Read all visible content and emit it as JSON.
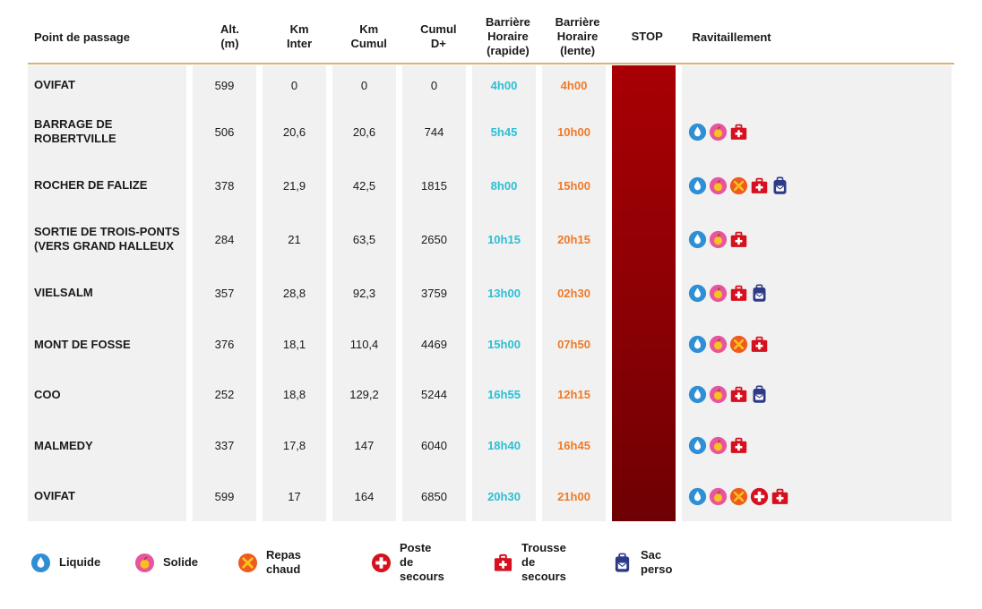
{
  "headers": {
    "name": "Point de passage",
    "alt": "Alt.\n(m)",
    "km_inter": "Km\nInter",
    "km_cumul": "Km\nCumul",
    "cumul_d": "Cumul\nD+",
    "bh_rapide": "Barrière\nHoraire\n(rapide)",
    "bh_lente": "Barrière\nHoraire\n(lente)",
    "stop": "STOP",
    "ravit": "Ravitaillement"
  },
  "rows": [
    {
      "name": "OVIFAT",
      "alt": "599",
      "km_inter": "0",
      "km_cumul": "0",
      "cumul_d": "0",
      "rapide": "4h00",
      "lente": "4h00",
      "icons": []
    },
    {
      "name": "BARRAGE DE\nROBERTVILLE",
      "alt": "506",
      "km_inter": "20,6",
      "km_cumul": "20,6",
      "cumul_d": "744",
      "rapide": "5h45",
      "lente": "10h00",
      "icons": [
        "liquide",
        "solide",
        "trousse"
      ]
    },
    {
      "name": "ROCHER DE FALIZE",
      "alt": "378",
      "km_inter": "21,9",
      "km_cumul": "42,5",
      "cumul_d": "1815",
      "rapide": "8h00",
      "lente": "15h00",
      "icons": [
        "liquide",
        "solide",
        "repas",
        "trousse",
        "sac"
      ]
    },
    {
      "name": "SORTIE DE TROIS-PONTS\n(VERS GRAND HALLEUX",
      "alt": "284",
      "km_inter": "21",
      "km_cumul": "63,5",
      "cumul_d": "2650",
      "rapide": "10h15",
      "lente": "20h15",
      "icons": [
        "liquide",
        "solide",
        "trousse"
      ]
    },
    {
      "name": "VIELSALM",
      "alt": "357",
      "km_inter": "28,8",
      "km_cumul": "92,3",
      "cumul_d": "3759",
      "rapide": "13h00",
      "lente": "02h30",
      "icons": [
        "liquide",
        "solide",
        "trousse",
        "sac"
      ]
    },
    {
      "name": "MONT DE FOSSE",
      "alt": "376",
      "km_inter": "18,1",
      "km_cumul": "110,4",
      "cumul_d": "4469",
      "rapide": "15h00",
      "lente": "07h50",
      "icons": [
        "liquide",
        "solide",
        "repas",
        "trousse"
      ]
    },
    {
      "name": "COO",
      "alt": "252",
      "km_inter": "18,8",
      "km_cumul": "129,2",
      "cumul_d": "5244",
      "rapide": "16h55",
      "lente": "12h15",
      "icons": [
        "liquide",
        "solide",
        "trousse",
        "sac"
      ]
    },
    {
      "name": "MALMEDY",
      "alt": "337",
      "km_inter": "17,8",
      "km_cumul": "147",
      "cumul_d": "6040",
      "rapide": "18h40",
      "lente": "16h45",
      "icons": [
        "liquide",
        "solide",
        "trousse"
      ]
    },
    {
      "name": "OVIFAT",
      "alt": "599",
      "km_inter": "17",
      "km_cumul": "164",
      "cumul_d": "6850",
      "rapide": "20h30",
      "lente": "21h00",
      "icons": [
        "liquide",
        "solide",
        "repas",
        "poste",
        "trousse"
      ]
    }
  ],
  "legend": [
    {
      "icon": "liquide",
      "label": "Liquide"
    },
    {
      "icon": "solide",
      "label": "Solide"
    },
    {
      "icon": "repas",
      "label": "Repas chaud"
    },
    {
      "icon": "poste",
      "label": "Poste\nde secours"
    },
    {
      "icon": "trousse",
      "label": "Trousse\nde secours"
    },
    {
      "icon": "sac",
      "label": "Sac perso"
    }
  ],
  "colors": {
    "rapide": "#2bbfd4",
    "lente": "#f07a26",
    "stop": "#a80004",
    "liquide": "#2e8fd6",
    "solide": "#e8559e",
    "repas": "#f05a1e",
    "secours": "#d6101e",
    "sac": "#2d3b87"
  }
}
